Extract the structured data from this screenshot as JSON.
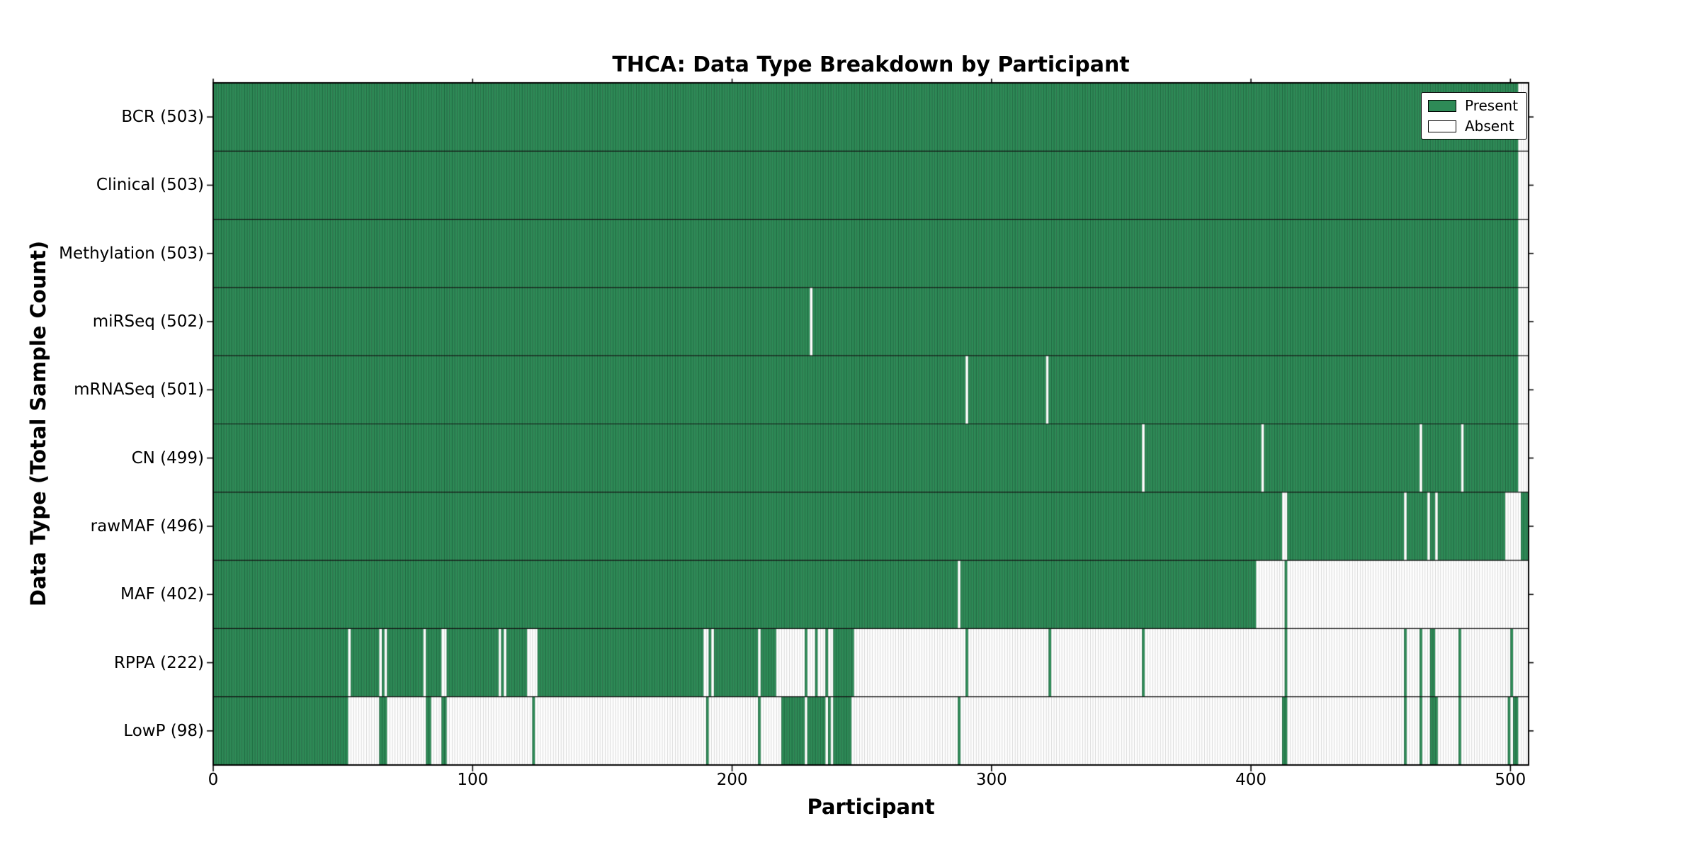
{
  "chart_data": {
    "type": "heatmap",
    "title": "THCA: Data Type Breakdown by Participant",
    "xlabel": "Participant",
    "ylabel": "Data Type (Total Sample Count)",
    "legend_labels": [
      "Present",
      "Absent"
    ],
    "legend_position": "upper right",
    "n_participants": 507,
    "xlim": [
      0,
      507
    ],
    "x_ticks": [
      0,
      100,
      200,
      300,
      400,
      500
    ],
    "grid": false,
    "colors": {
      "present": "#2e8b57",
      "absent": "#ffffff"
    },
    "rows": [
      {
        "label": "BCR (503)",
        "data_type": "BCR",
        "total": 503,
        "present_ranges": [
          [
            0,
            502
          ]
        ]
      },
      {
        "label": "Clinical (503)",
        "data_type": "Clinical",
        "total": 503,
        "present_ranges": [
          [
            0,
            502
          ]
        ]
      },
      {
        "label": "Methylation (503)",
        "data_type": "Methylation",
        "total": 503,
        "present_ranges": [
          [
            0,
            502
          ]
        ]
      },
      {
        "label": "miRSeq (502)",
        "data_type": "miRSeq",
        "total": 502,
        "present_ranges": [
          [
            0,
            229
          ],
          [
            231,
            502
          ]
        ]
      },
      {
        "label": "mRNASeq (501)",
        "data_type": "mRNASeq",
        "total": 501,
        "present_ranges": [
          [
            0,
            289
          ],
          [
            291,
            320
          ],
          [
            322,
            502
          ]
        ]
      },
      {
        "label": "CN (499)",
        "data_type": "CN",
        "total": 499,
        "present_ranges": [
          [
            0,
            357
          ],
          [
            359,
            403
          ],
          [
            405,
            464
          ],
          [
            466,
            480
          ],
          [
            482,
            502
          ]
        ]
      },
      {
        "label": "rawMAF (496)",
        "data_type": "rawMAF",
        "total": 496,
        "present_ranges": [
          [
            0,
            411
          ],
          [
            414,
            458
          ],
          [
            460,
            467
          ],
          [
            469,
            470
          ],
          [
            472,
            497
          ],
          [
            504,
            506
          ]
        ]
      },
      {
        "label": "MAF (402)",
        "data_type": "MAF",
        "total": 402,
        "present_ranges": [
          [
            0,
            286
          ],
          [
            288,
            401
          ],
          [
            413,
            413
          ]
        ]
      },
      {
        "label": "RPPA (222)",
        "data_type": "RPPA",
        "total": 222,
        "present_ranges": [
          [
            0,
            51
          ],
          [
            53,
            63
          ],
          [
            65,
            65
          ],
          [
            67,
            80
          ],
          [
            82,
            87
          ],
          [
            90,
            109
          ],
          [
            111,
            111
          ],
          [
            113,
            120
          ],
          [
            125,
            188
          ],
          [
            191,
            191
          ],
          [
            193,
            209
          ],
          [
            211,
            216
          ],
          [
            228,
            228
          ],
          [
            232,
            232
          ],
          [
            236,
            236
          ],
          [
            239,
            246
          ],
          [
            290,
            290
          ],
          [
            322,
            322
          ],
          [
            358,
            358
          ],
          [
            413,
            413
          ],
          [
            459,
            459
          ],
          [
            465,
            465
          ],
          [
            469,
            470
          ],
          [
            480,
            480
          ],
          [
            500,
            500
          ]
        ]
      },
      {
        "label": "LowP (98)",
        "data_type": "LowP",
        "total": 98,
        "present_ranges": [
          [
            0,
            51
          ],
          [
            64,
            66
          ],
          [
            82,
            83
          ],
          [
            88,
            89
          ],
          [
            123,
            123
          ],
          [
            190,
            190
          ],
          [
            210,
            210
          ],
          [
            219,
            227
          ],
          [
            229,
            235
          ],
          [
            237,
            237
          ],
          [
            239,
            245
          ],
          [
            287,
            287
          ],
          [
            412,
            413
          ],
          [
            459,
            459
          ],
          [
            465,
            465
          ],
          [
            469,
            471
          ],
          [
            480,
            480
          ],
          [
            499,
            499
          ],
          [
            501,
            502
          ]
        ]
      }
    ]
  }
}
